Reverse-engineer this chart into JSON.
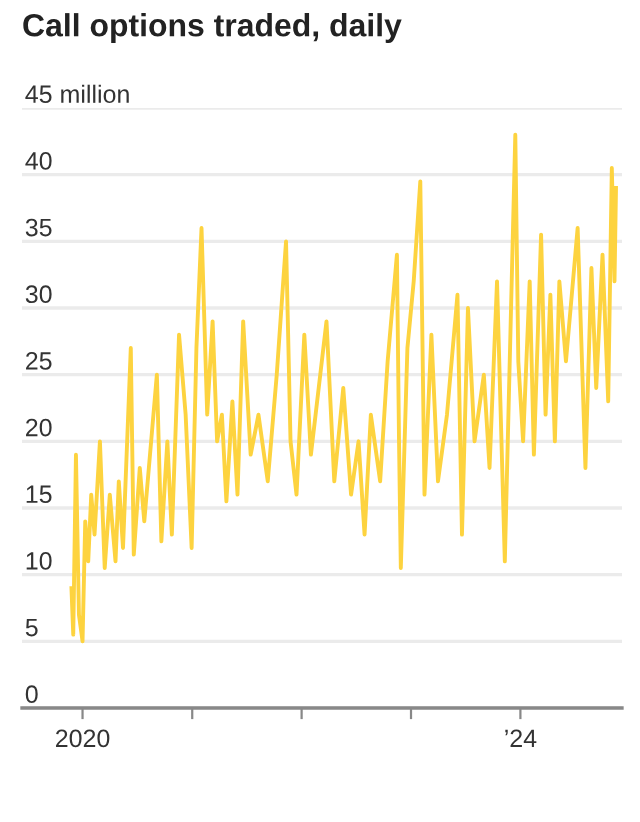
{
  "chart_data": {
    "type": "line",
    "title": "Call options traded, daily",
    "x": [
      "2019-11-25",
      "2019-12-01",
      "2019-12-10",
      "2019-12-20",
      "2020-01-01",
      "2020-01-10",
      "2020-01-20",
      "2020-01-30",
      "2020-02-10",
      "2020-02-28",
      "2020-03-15",
      "2020-04-01",
      "2020-04-20",
      "2020-05-01",
      "2020-05-15",
      "2020-06-10",
      "2020-06-20",
      "2020-07-10",
      "2020-07-25",
      "2020-09-05",
      "2020-09-20",
      "2020-10-10",
      "2020-10-25",
      "2020-11-18",
      "2020-12-10",
      "2020-12-30",
      "2021-01-15",
      "2021-02-01",
      "2021-02-20",
      "2021-03-10",
      "2021-03-25",
      "2021-04-10",
      "2021-04-25",
      "2021-05-15",
      "2021-06-01",
      "2021-06-20",
      "2021-07-15",
      "2021-08-10",
      "2021-09-10",
      "2021-10-10",
      "2021-11-10",
      "2021-11-25",
      "2021-12-15",
      "2022-01-10",
      "2022-02-01",
      "2022-03-25",
      "2022-04-20",
      "2022-05-20",
      "2022-06-15",
      "2022-07-10",
      "2022-07-30",
      "2022-08-20",
      "2022-09-20",
      "2022-10-15",
      "2022-11-15",
      "2022-11-22",
      "2022-11-28",
      "2022-12-20",
      "2023-01-10",
      "2023-02-01",
      "2023-02-15",
      "2023-03-10",
      "2023-04-01",
      "2023-05-01",
      "2023-06-05",
      "2023-06-20",
      "2023-07-10",
      "2023-08-01",
      "2023-09-01",
      "2023-09-20",
      "2023-10-15",
      "2023-11-10",
      "2023-12-15",
      "2023-12-25",
      "2024-01-10",
      "2024-02-01",
      "2024-02-15",
      "2024-03-10",
      "2024-03-25",
      "2024-04-10",
      "2024-04-25",
      "2024-05-10",
      "2024-06-01",
      "2024-07-10",
      "2024-08-05",
      "2024-08-25",
      "2024-09-10",
      "2024-10-01",
      "2024-10-20",
      "2024-11-01",
      "2024-11-10",
      "2024-11-15"
    ],
    "series": [
      {
        "color": "#fdd33f",
        "values": [
          9,
          5.5,
          19,
          7,
          5,
          14,
          11,
          16,
          13,
          20,
          10.5,
          16,
          11,
          17,
          12,
          27,
          11.5,
          18,
          14,
          25,
          12.5,
          20,
          13,
          28,
          22,
          12,
          27,
          36,
          22,
          29,
          20,
          22,
          15.5,
          23,
          16,
          29,
          19,
          22,
          17,
          25,
          35,
          20,
          16,
          28,
          19,
          29,
          17,
          24,
          16,
          20,
          13,
          22,
          17,
          26,
          34,
          20,
          10.5,
          27,
          32,
          39.5,
          16,
          28,
          17,
          22,
          31,
          13,
          30,
          20,
          25,
          18,
          32,
          11,
          43,
          26,
          20,
          32,
          19,
          35.5,
          22,
          31,
          20,
          32,
          26,
          36,
          18,
          33,
          24,
          34,
          23,
          40.5,
          32,
          39
        ]
      }
    ],
    "xlim": [
      "2019-06-13",
      "2024-12-05"
    ],
    "xticks": [
      {
        "value": "2020-01-01",
        "label": "2020"
      },
      {
        "value": "2021-01-01",
        "label": null
      },
      {
        "value": "2022-01-01",
        "label": null
      },
      {
        "value": "2023-01-01",
        "label": null
      },
      {
        "value": "2024-01-01",
        "label": "’24"
      }
    ],
    "ylim": [
      0,
      45
    ],
    "yticks": [
      0,
      5,
      10,
      15,
      20,
      25,
      30,
      35,
      40,
      {
        "value": 45,
        "label": "45 million"
      }
    ],
    "grid": "y",
    "legend": false,
    "marker": "none",
    "line_style": "solid"
  }
}
